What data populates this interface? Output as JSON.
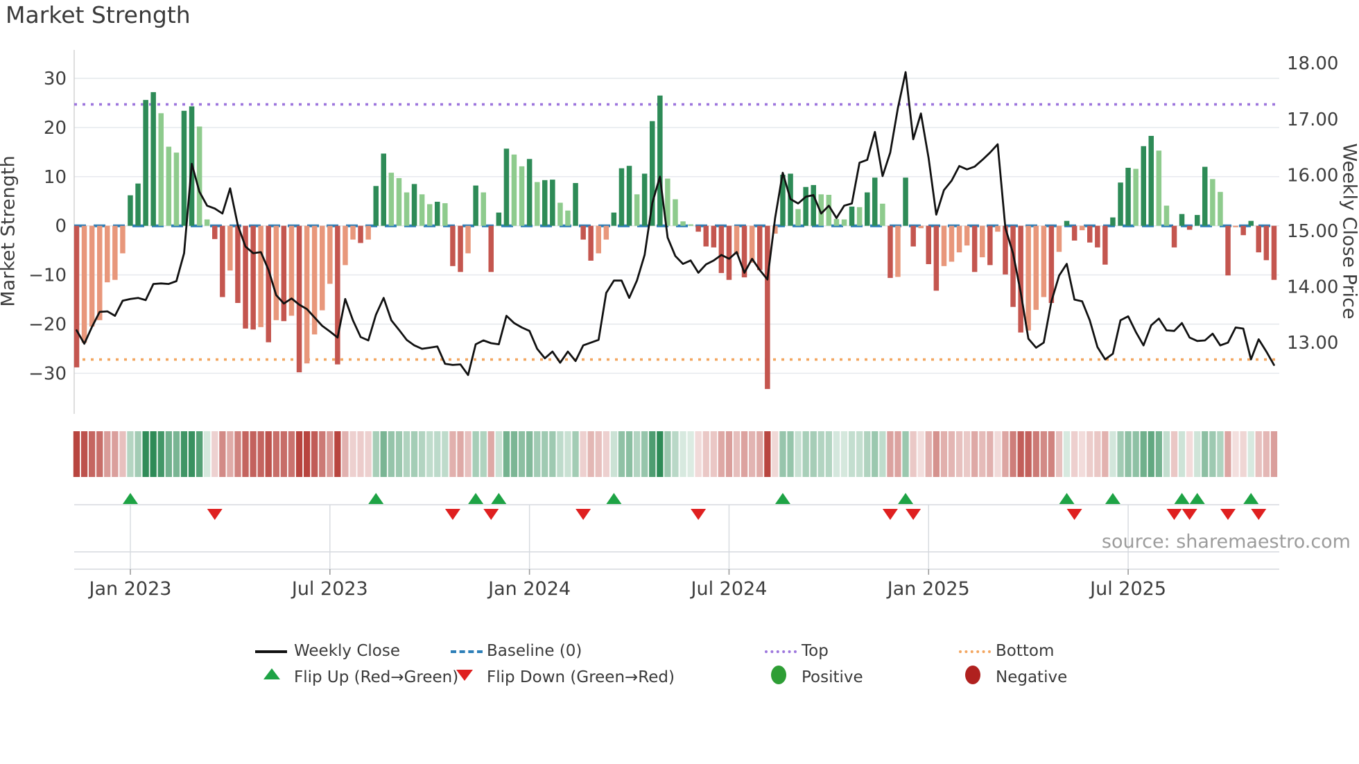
{
  "title": "Market Strength",
  "source": "source: sharemaestro.com",
  "axes": {
    "left_label": "Market Strength",
    "right_label": "Weekly Close Price",
    "left_ticks": [
      "30",
      "20",
      "10",
      "0",
      "-10",
      "-20",
      "-30"
    ],
    "right_ticks": [
      "18.00",
      "17.00",
      "16.00",
      "15.00",
      "14.00",
      "13.00"
    ],
    "x_ticks": [
      {
        "label": "Jan 2023",
        "week": 7
      },
      {
        "label": "Jul 2023",
        "week": 33
      },
      {
        "label": "Jan 2024",
        "week": 59
      },
      {
        "label": "Jul 2024",
        "week": 85
      },
      {
        "label": "Jan 2025",
        "week": 111
      },
      {
        "label": "Jul 2025",
        "week": 137
      }
    ]
  },
  "legend": {
    "weekly_close": "Weekly Close",
    "baseline": "Baseline (0)",
    "top": "Top",
    "bottom": "Bottom",
    "flip_up": "Flip Up (Red→Green)",
    "flip_down": "Flip Down (Green→Red)",
    "positive": "Positive",
    "negative": "Negative"
  },
  "colors": {
    "background": "#ffffff",
    "grid": "#e4e7ec",
    "spine": "#d0d0d0",
    "band_line": "#d5d9de",
    "bar_pos_dark": "#2e8b57",
    "bar_pos_light": "#8ecb8d",
    "bar_neg_dark": "#c4564f",
    "bar_neg_light": "#e8977b",
    "price_line": "#111111",
    "baseline": "#2d7fb8",
    "top_line": "#9d76dd",
    "bottom_line": "#f3a660",
    "flip_up": "#1ea345",
    "flip_down": "#df2020",
    "heat_pos": "#2e8b57",
    "heat_neg": "#b8453f",
    "tick_text": "#3d3d3d"
  },
  "chart_data": {
    "type": "bar+line",
    "title": "Market Strength",
    "ylabel_left": "Market Strength",
    "ylabel_right": "Weekly Close Price",
    "left_ylim": [
      -38,
      35
    ],
    "right_ylim": [
      11.8,
      18.2
    ],
    "baseline_value": 0,
    "top_value": 24.7,
    "bottom_value": -27.2,
    "weeks_total": 157,
    "strength": [
      -28.8,
      -23.8,
      -20.5,
      -19.2,
      -11.5,
      -11.0,
      -5.6,
      6.2,
      8.6,
      25.6,
      27.2,
      22.9,
      16.1,
      14.9,
      23.4,
      24.3,
      20.2,
      1.3,
      -2.7,
      -14.5,
      -9.1,
      -15.7,
      -20.9,
      -21.1,
      -20.6,
      -23.7,
      -19.2,
      -19.4,
      -18.3,
      -29.8,
      -28.0,
      -22.1,
      -17.2,
      -11.8,
      -28.2,
      -8.0,
      -2.8,
      -3.5,
      -2.8,
      8.1,
      14.7,
      10.8,
      9.7,
      6.8,
      8.5,
      6.4,
      4.4,
      4.9,
      4.6,
      -8.2,
      -9.4,
      -5.6,
      8.2,
      6.8,
      -9.4,
      2.7,
      15.7,
      14.5,
      12.1,
      13.6,
      8.9,
      9.3,
      9.4,
      4.7,
      3.1,
      8.7,
      -2.8,
      -7.1,
      -5.6,
      -2.8,
      2.7,
      11.7,
      12.2,
      6.4,
      10.6,
      21.3,
      26.5,
      9.6,
      5.4,
      0.9,
      0.3,
      -1.2,
      -4.2,
      -4.4,
      -9.6,
      -11.0,
      -5.8,
      -10.5,
      -7.5,
      -9.0,
      -33.2,
      -1.6,
      10.4,
      10.6,
      3.4,
      7.9,
      8.3,
      6.4,
      6.3,
      1.4,
      1.3,
      3.9,
      3.8,
      6.8,
      9.8,
      4.5,
      -10.6,
      -10.4,
      9.8,
      -4.2,
      -0.5,
      -7.8,
      -13.2,
      -8.2,
      -7.3,
      -5.4,
      -4.0,
      -9.4,
      -6.4,
      -8.0,
      -1.2,
      -9.9,
      -16.5,
      -21.7,
      -21.3,
      -17.1,
      -14.5,
      -15.7,
      -5.3,
      1.0,
      -3.0,
      -0.9,
      -3.4,
      -4.4,
      -7.9,
      1.7,
      8.8,
      11.8,
      11.6,
      16.2,
      18.3,
      15.3,
      4.1,
      -4.4,
      2.4,
      -0.8,
      2.2,
      12.0,
      9.5,
      6.9,
      -10.1,
      -0.3,
      -1.9,
      1.0,
      -5.4,
      -7.0,
      -11.0
    ],
    "weekly_close": [
      13.22,
      12.98,
      13.28,
      13.55,
      13.56,
      13.48,
      13.75,
      13.78,
      13.8,
      13.76,
      14.05,
      14.06,
      14.05,
      14.1,
      14.6,
      16.2,
      15.7,
      15.45,
      15.4,
      15.31,
      15.76,
      15.1,
      14.72,
      14.6,
      14.62,
      14.3,
      13.85,
      13.7,
      13.79,
      13.68,
      13.6,
      13.45,
      13.3,
      13.2,
      13.09,
      13.78,
      13.4,
      13.1,
      13.04,
      13.5,
      13.8,
      13.4,
      13.23,
      13.05,
      12.95,
      12.89,
      12.91,
      12.93,
      12.62,
      12.6,
      12.61,
      12.42,
      12.97,
      13.04,
      12.99,
      12.97,
      13.48,
      13.35,
      13.27,
      13.21,
      12.89,
      12.72,
      12.84,
      12.64,
      12.84,
      12.67,
      12.95,
      13.0,
      13.05,
      13.89,
      14.11,
      14.11,
      13.8,
      14.11,
      14.57,
      15.5,
      15.97,
      14.88,
      14.55,
      14.41,
      14.47,
      14.25,
      14.4,
      14.47,
      14.57,
      14.5,
      14.62,
      14.25,
      14.5,
      14.3,
      14.13,
      15.23,
      16.04,
      15.57,
      15.49,
      15.61,
      15.64,
      15.31,
      15.45,
      15.23,
      15.45,
      15.49,
      16.22,
      16.27,
      16.77,
      15.98,
      16.4,
      17.2,
      17.84,
      16.64,
      17.1,
      16.3,
      15.29,
      15.73,
      15.9,
      16.16,
      16.1,
      16.15,
      16.27,
      16.4,
      16.55,
      15.05,
      14.6,
      13.9,
      13.07,
      12.91,
      13.0,
      13.74,
      14.2,
      14.41,
      13.77,
      13.74,
      13.4,
      12.92,
      12.7,
      12.8,
      13.4,
      13.47,
      13.19,
      12.95,
      13.31,
      13.43,
      13.22,
      13.21,
      13.35,
      13.09,
      13.03,
      13.04,
      13.16,
      12.95,
      13.0,
      13.27,
      13.25,
      12.7,
      13.06,
      12.84,
      12.6
    ],
    "flip_up_weeks": [
      7,
      39,
      52,
      55,
      70,
      92,
      108,
      129,
      135,
      144,
      146,
      153
    ],
    "flip_down_weeks": [
      18,
      49,
      54,
      66,
      81,
      106,
      109,
      130,
      143,
      145,
      150,
      154
    ]
  }
}
